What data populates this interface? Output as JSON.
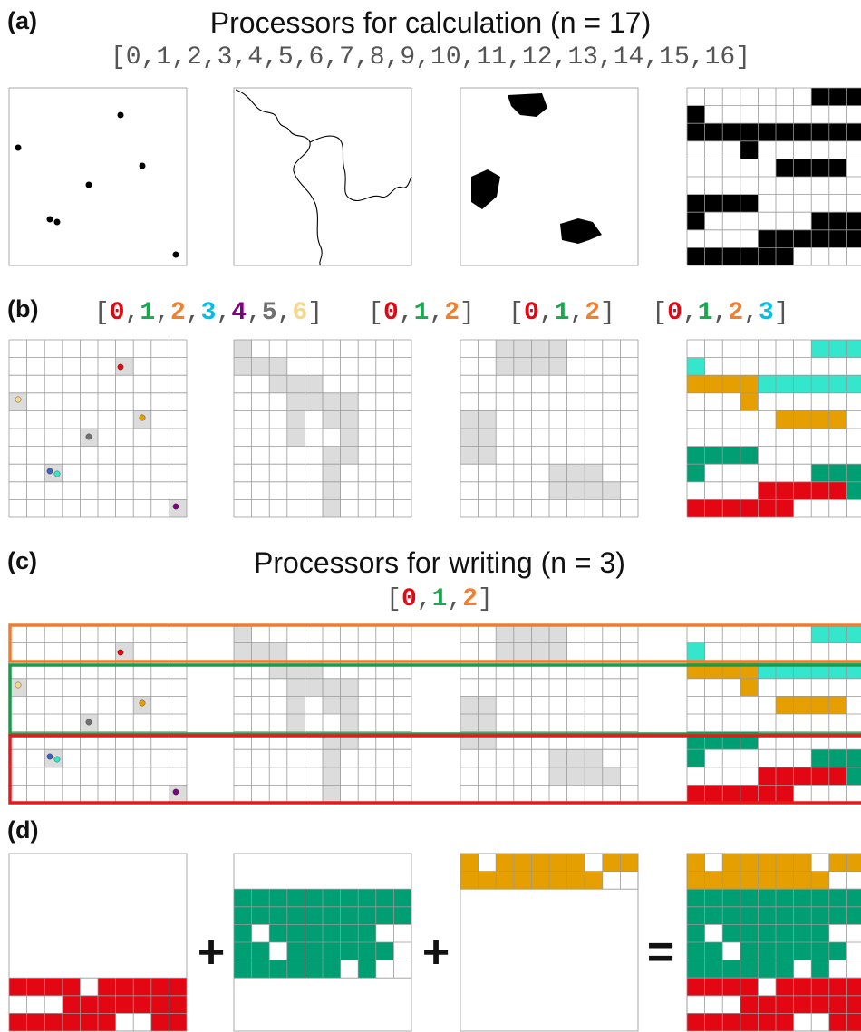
{
  "colors": {
    "red": "#e30613",
    "green": "#009e73",
    "orange": "#e69f00",
    "cyan": "#33e6cc",
    "sky": "#00c0e8",
    "purple": "#800080",
    "gray": "#707070",
    "lightyellow": "#f5d78e",
    "label_orange": "#f08030",
    "label_green": "#1aa850",
    "selected_gray": "#dcdcdc",
    "grid": "#999999",
    "black": "#000000",
    "writer_orange": "#ee7d31",
    "writer_green": "#1a9a4a",
    "writer_red": "#e61a1a"
  },
  "panel_a": {
    "label": "(a)",
    "title": "Processors for calculation (n = 17)",
    "list_open": "[",
    "list_close": "]",
    "processor_ids": [
      "0",
      "1",
      "2",
      "3",
      "4",
      "5",
      "6",
      "7",
      "8",
      "9",
      "10",
      "11",
      "12",
      "13",
      "14",
      "15",
      "16"
    ],
    "tiles": [
      "points",
      "lines",
      "polygons",
      "raster"
    ]
  },
  "panel_b": {
    "label": "(b)",
    "groups": [
      {
        "ids": [
          "0",
          "1",
          "2",
          "3",
          "4",
          "5",
          "6"
        ],
        "colors": [
          "#e30613",
          "#1aa850",
          "#f08030",
          "#00c0e8",
          "#800080",
          "#707070",
          "#f5d78e"
        ]
      },
      {
        "ids": [
          "0",
          "1",
          "2"
        ],
        "colors": [
          "#e30613",
          "#1aa850",
          "#f08030"
        ]
      },
      {
        "ids": [
          "0",
          "1",
          "2"
        ],
        "colors": [
          "#e30613",
          "#1aa850",
          "#f08030"
        ]
      },
      {
        "ids": [
          "0",
          "1",
          "2",
          "3"
        ],
        "colors": [
          "#e30613",
          "#1aa850",
          "#f08030",
          "#00c0e8"
        ]
      }
    ]
  },
  "panel_c": {
    "label": "(c)",
    "title": "Processors for writing (n = 3)",
    "ids": [
      "0",
      "1",
      "2"
    ],
    "colors": [
      "#e30613",
      "#1aa850",
      "#f08030"
    ]
  },
  "panel_d": {
    "label": "(d)",
    "plus": "+",
    "equals": "=",
    "parts": [
      "red",
      "green",
      "orange",
      "combined"
    ]
  }
}
